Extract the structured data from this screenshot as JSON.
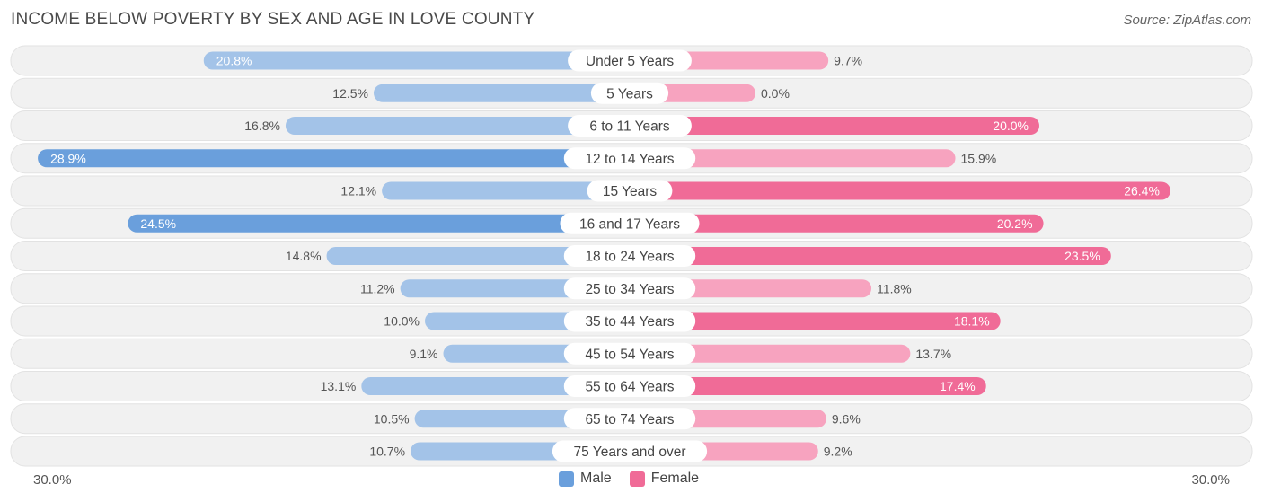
{
  "title": "INCOME BELOW POVERTY BY SEX AND AGE IN LOVE COUNTY",
  "source": "Source: ZipAtlas.com",
  "colors": {
    "male_strong": "#6a9fdc",
    "male_light": "#a3c3e8",
    "female_strong": "#f06b97",
    "female_light": "#f7a3bf",
    "row_bg": "#f1f1f1"
  },
  "legend": {
    "male_label": "Male",
    "female_label": "Female"
  },
  "axis": {
    "left_label": "30.0%",
    "right_label": "30.0%"
  },
  "chart_data": {
    "type": "bar",
    "orientation": "horizontal-diverging",
    "title": "INCOME BELOW POVERTY BY SEX AND AGE IN LOVE COUNTY",
    "xlim": [
      -30,
      30
    ],
    "categories": [
      "Under 5 Years",
      "5 Years",
      "6 to 11 Years",
      "12 to 14 Years",
      "15 Years",
      "16 and 17 Years",
      "18 to 24 Years",
      "25 to 34 Years",
      "35 to 44 Years",
      "45 to 54 Years",
      "55 to 64 Years",
      "65 to 74 Years",
      "75 Years and over"
    ],
    "series": [
      {
        "name": "Male",
        "values": [
          20.8,
          12.5,
          16.8,
          28.9,
          12.1,
          24.5,
          14.8,
          11.2,
          10.0,
          9.1,
          13.1,
          10.5,
          10.7
        ],
        "labels": [
          "20.8%",
          "12.5%",
          "16.8%",
          "28.9%",
          "12.1%",
          "24.5%",
          "14.8%",
          "11.2%",
          "10.0%",
          "9.1%",
          "13.1%",
          "10.5%",
          "10.7%"
        ]
      },
      {
        "name": "Female",
        "values": [
          9.7,
          0.0,
          20.0,
          15.9,
          26.4,
          20.2,
          23.5,
          11.8,
          18.1,
          13.7,
          17.4,
          9.6,
          9.2
        ],
        "labels": [
          "9.7%",
          "0.0%",
          "20.0%",
          "15.9%",
          "26.4%",
          "20.2%",
          "23.5%",
          "11.8%",
          "18.1%",
          "13.7%",
          "17.4%",
          "9.6%",
          "9.2%"
        ]
      }
    ]
  }
}
